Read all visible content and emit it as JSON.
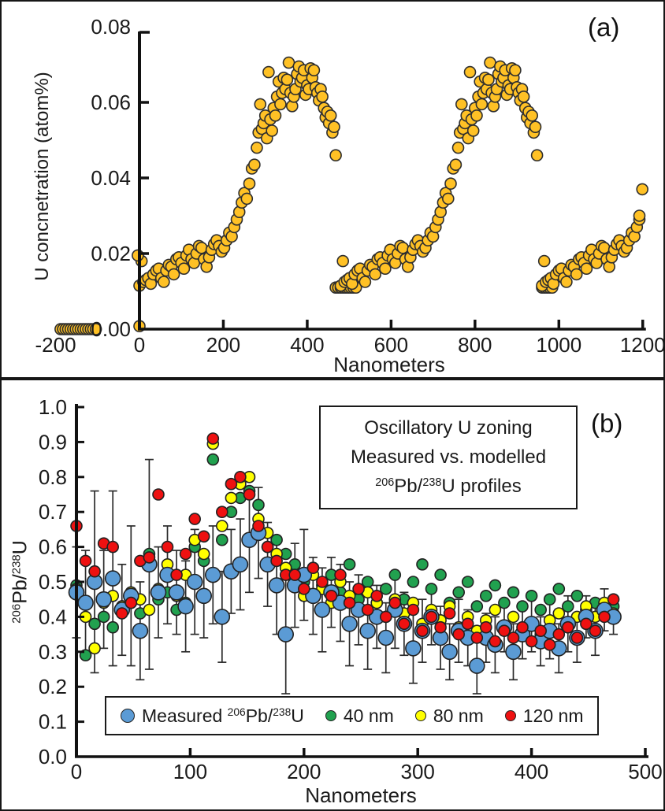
{
  "page": {
    "background": "#ffffff",
    "border_color": "#161616"
  },
  "panel_a": {
    "letter": "(a)",
    "ylabel": "U concnetration (atom%)",
    "xlabel": "Nanometers"
  },
  "panel_b": {
    "letter": "(b)",
    "xlabel": "Nanometers",
    "ylabel_parts": {
      "sup1": "206",
      "mid": "Pb/",
      "sup2": "238",
      "end": "U"
    },
    "title_box": {
      "line1": "Oscillatory U zoning",
      "line2": "Measured vs. modelled",
      "line3_parts": {
        "sup1": "206",
        "mid": "Pb/",
        "sup2": "238",
        "end": "U profiles"
      }
    },
    "legend": {
      "measured": {
        "prefix": "Measured ",
        "sup1": "206",
        "mid": "Pb/",
        "sup2": "238",
        "end": "U"
      },
      "items": [
        {
          "label": "40 nm",
          "color": "#21A14F"
        },
        {
          "label": "80 nm",
          "color": "#FFFF00"
        },
        {
          "label": "120 nm",
          "color": "#EE1111"
        }
      ]
    }
  },
  "chart_data": [
    {
      "id": "panel-a",
      "type": "scatter",
      "title": "Oscillatory U zoning profile",
      "xlabel": "Nanometers",
      "ylabel": "U concnetration (atom%)",
      "xlim": [
        -260,
        1210
      ],
      "ylim": [
        0,
        0.08
      ],
      "xticks": [
        -200,
        0,
        200,
        400,
        600,
        800,
        1000,
        1200
      ],
      "xtick_labels": [
        "-200",
        "0",
        "200",
        "400",
        "600",
        "800",
        "1000",
        "1200"
      ],
      "yticks": [
        0,
        0.02,
        0.04,
        0.06,
        0.08
      ],
      "ytick_labels": [
        "0.00",
        "0.02",
        "0.04",
        "0.06",
        "0.08"
      ],
      "grid": false,
      "marker": {
        "color": "#FFC125",
        "stroke": "#2e2e2e",
        "radius": 7
      },
      "cycles": [
        {
          "offset": 0,
          "max_dx": 470
        },
        {
          "offset": 480,
          "max_dx": 470
        },
        {
          "offset": 960,
          "max_dx": 236
        }
      ],
      "cycle_template": [
        [
          0,
          0.0115
        ],
        [
          5,
          0.018
        ],
        [
          9,
          0.0125
        ],
        [
          15,
          0.013
        ],
        [
          21,
          0.0135
        ],
        [
          27,
          0.012
        ],
        [
          33,
          0.0145
        ],
        [
          40,
          0.0155
        ],
        [
          46,
          0.016
        ],
        [
          52,
          0.0135
        ],
        [
          58,
          0.0125
        ],
        [
          64,
          0.0155
        ],
        [
          70,
          0.017
        ],
        [
          76,
          0.0165
        ],
        [
          82,
          0.0145
        ],
        [
          88,
          0.0185
        ],
        [
          94,
          0.019
        ],
        [
          100,
          0.0175
        ],
        [
          106,
          0.016
        ],
        [
          112,
          0.0195
        ],
        [
          118,
          0.021
        ],
        [
          124,
          0.0185
        ],
        [
          130,
          0.0175
        ],
        [
          136,
          0.02
        ],
        [
          142,
          0.022
        ],
        [
          148,
          0.0215
        ],
        [
          154,
          0.0185
        ],
        [
          160,
          0.0165
        ],
        [
          166,
          0.019
        ],
        [
          172,
          0.021
        ],
        [
          178,
          0.0225
        ],
        [
          184,
          0.0235
        ],
        [
          190,
          0.022
        ],
        [
          196,
          0.0205
        ],
        [
          202,
          0.0215
        ],
        [
          208,
          0.0235
        ],
        [
          214,
          0.0255
        ],
        [
          220,
          0.0245
        ],
        [
          226,
          0.027
        ],
        [
          232,
          0.029
        ],
        [
          238,
          0.031
        ],
        [
          244,
          0.0335
        ],
        [
          250,
          0.036
        ],
        [
          256,
          0.0345
        ],
        [
          262,
          0.0385
        ],
        [
          268,
          0.0425
        ],
        [
          274,
          0.0435
        ],
        [
          280,
          0.048
        ],
        [
          284,
          0.052
        ],
        [
          288,
          0.0595
        ],
        [
          292,
          0.053
        ],
        [
          296,
          0.0545
        ],
        [
          300,
          0.0565
        ],
        [
          304,
          0.0505
        ],
        [
          308,
          0.068
        ],
        [
          312,
          0.0555
        ],
        [
          316,
          0.0525
        ],
        [
          320,
          0.0585
        ],
        [
          324,
          0.0565
        ],
        [
          328,
          0.0615
        ],
        [
          332,
          0.0655
        ],
        [
          336,
          0.0595
        ],
        [
          340,
          0.0625
        ],
        [
          344,
          0.0665
        ],
        [
          348,
          0.0635
        ],
        [
          352,
          0.066
        ],
        [
          356,
          0.0705
        ],
        [
          360,
          0.0625
        ],
        [
          364,
          0.059
        ],
        [
          368,
          0.0615
        ],
        [
          372,
          0.0635
        ],
        [
          376,
          0.0675
        ],
        [
          380,
          0.0695
        ],
        [
          384,
          0.0655
        ],
        [
          388,
          0.0665
        ],
        [
          392,
          0.0685
        ],
        [
          396,
          0.062
        ],
        [
          400,
          0.0645
        ],
        [
          404,
          0.0635
        ],
        [
          408,
          0.069
        ],
        [
          412,
          0.0665
        ],
        [
          416,
          0.0685
        ],
        [
          420,
          0.064
        ],
        [
          424,
          0.0625
        ],
        [
          428,
          0.0605
        ],
        [
          432,
          0.0635
        ],
        [
          436,
          0.0615
        ],
        [
          440,
          0.0585
        ],
        [
          444,
          0.056
        ],
        [
          448,
          0.0575
        ],
        [
          452,
          0.0545
        ],
        [
          456,
          0.0565
        ],
        [
          460,
          0.052
        ],
        [
          464,
          0.0535
        ],
        [
          468,
          0.046
        ]
      ],
      "chains": [
        {
          "y": 0.0,
          "x": [
            -188,
            -182,
            -176,
            -170,
            -164,
            -158,
            -152,
            -146,
            -140,
            -134,
            -128,
            -122,
            -116,
            -110,
            -104
          ]
        },
        {
          "y": 0.011,
          "x": [
            468,
            474,
            480,
            486,
            492,
            498,
            504,
            510,
            516
          ]
        },
        {
          "y": 0.011,
          "x": [
            960,
            966,
            972,
            978,
            984
          ]
        }
      ],
      "extra_points": [
        [
          -4,
          0.0195
        ],
        [
          0,
          0.0008
        ],
        [
          1192,
          0.03
        ],
        [
          1199,
          0.037
        ]
      ]
    },
    {
      "id": "panel-b",
      "type": "scatter",
      "title": "Oscillatory U zoning - Measured vs. modelled 206Pb/238U profiles",
      "xlabel": "Nanometers",
      "ylabel": "²⁰⁶Pb/²³⁸U",
      "xlim": [
        0,
        500
      ],
      "ylim": [
        0,
        1
      ],
      "xticks": [
        0,
        100,
        200,
        300,
        400,
        500
      ],
      "xtick_labels": [
        "0",
        "100",
        "200",
        "300",
        "400",
        "500"
      ],
      "yticks": [
        0,
        0.1,
        0.2,
        0.3,
        0.4,
        0.5,
        0.6,
        0.7,
        0.8,
        0.9,
        1.0
      ],
      "ytick_labels": [
        "0.0",
        "0.1",
        "0.2",
        "0.3",
        "0.4",
        "0.5",
        "0.6",
        "0.7",
        "0.8",
        "0.9",
        "1.0"
      ],
      "grid": false,
      "legend_position": "bottom-left",
      "x_start": 0,
      "x_step": 8,
      "series": [
        {
          "name": "Measured ²⁰⁶Pb/²³⁸U",
          "color": "#5B9BD5",
          "stroke": "#222222",
          "radius": 9.5,
          "values": [
            0.47,
            0.44,
            0.5,
            0.45,
            0.51,
            0.42,
            0.46,
            0.36,
            0.55,
            0.47,
            0.52,
            0.47,
            0.43,
            0.5,
            0.46,
            0.52,
            0.4,
            0.53,
            0.55,
            0.62,
            0.64,
            0.55,
            0.49,
            0.35,
            0.49,
            0.52,
            0.46,
            0.42,
            0.47,
            0.44,
            0.38,
            0.42,
            0.36,
            0.4,
            0.34,
            0.42,
            0.38,
            0.31,
            0.36,
            0.4,
            0.34,
            0.3,
            0.36,
            0.34,
            0.26,
            0.34,
            0.32,
            0.37,
            0.3,
            0.35,
            0.38,
            0.33,
            0.36,
            0.31,
            0.38,
            0.34,
            0.4,
            0.36,
            0.42,
            0.4
          ],
          "errors": [
            0.13,
            0.15,
            0.26,
            0.14,
            0.25,
            0.13,
            0.2,
            0.14,
            0.3,
            0.13,
            0.14,
            0.12,
            0.13,
            0.15,
            0.12,
            0.14,
            0.13,
            0.12,
            0.13,
            0.15,
            0.13,
            0.12,
            0.14,
            0.17,
            0.12,
            0.13,
            0.11,
            0.12,
            0.1,
            0.11,
            0.12,
            0.1,
            0.11,
            0.09,
            0.1,
            0.11,
            0.09,
            0.1,
            0.09,
            0.08,
            0.09,
            0.08,
            0.09,
            0.08,
            0.08,
            0.07,
            0.08,
            0.07,
            0.08,
            0.07,
            0.08,
            0.07,
            0.08,
            0.07,
            0.08,
            0.07,
            0.06,
            0.07,
            0.06,
            0.05
          ]
        },
        {
          "name": "40 nm",
          "color": "#21A14F",
          "stroke": "#222222",
          "radius": 7,
          "values": [
            0.49,
            0.29,
            0.38,
            0.4,
            0.37,
            0.43,
            0.44,
            0.41,
            0.58,
            0.45,
            0.47,
            0.42,
            0.44,
            0.6,
            0.56,
            0.85,
            0.62,
            0.7,
            0.74,
            0.76,
            0.72,
            0.6,
            0.62,
            0.58,
            0.55,
            0.5,
            0.54,
            0.49,
            0.52,
            0.47,
            0.55,
            0.45,
            0.5,
            0.44,
            0.48,
            0.52,
            0.45,
            0.5,
            0.55,
            0.48,
            0.52,
            0.44,
            0.47,
            0.5,
            0.43,
            0.46,
            0.49,
            0.44,
            0.47,
            0.43,
            0.46,
            0.42,
            0.45,
            0.48,
            0.43,
            0.46,
            0.42,
            0.44,
            0.41,
            0.43
          ]
        },
        {
          "name": "80 nm",
          "color": "#FFFF00",
          "stroke": "#222222",
          "radius": 7,
          "values": [
            0.48,
            0.4,
            0.31,
            0.44,
            0.46,
            0.43,
            0.47,
            0.45,
            0.42,
            0.48,
            0.55,
            0.46,
            0.52,
            0.62,
            0.58,
            0.895,
            0.66,
            0.74,
            0.78,
            0.8,
            0.68,
            0.64,
            0.58,
            0.54,
            0.5,
            0.46,
            0.52,
            0.48,
            0.44,
            0.5,
            0.46,
            0.42,
            0.47,
            0.44,
            0.4,
            0.45,
            0.41,
            0.44,
            0.38,
            0.42,
            0.39,
            0.43,
            0.37,
            0.4,
            0.36,
            0.39,
            0.42,
            0.37,
            0.4,
            0.36,
            0.38,
            0.35,
            0.39,
            0.41,
            0.37,
            0.4,
            0.43,
            0.4,
            0.44,
            0.41
          ]
        },
        {
          "name": "120 nm",
          "color": "#EE1111",
          "stroke": "#222222",
          "radius": 7,
          "values": [
            0.66,
            0.56,
            0.53,
            0.61,
            0.6,
            0.41,
            0.44,
            0.56,
            0.57,
            0.75,
            0.6,
            0.52,
            0.58,
            0.68,
            0.63,
            0.91,
            0.7,
            0.78,
            0.8,
            0.75,
            0.66,
            0.6,
            0.56,
            0.52,
            0.52,
            0.48,
            0.54,
            0.5,
            0.46,
            0.52,
            0.44,
            0.48,
            0.42,
            0.46,
            0.4,
            0.44,
            0.38,
            0.42,
            0.36,
            0.4,
            0.37,
            0.41,
            0.35,
            0.38,
            0.34,
            0.37,
            0.33,
            0.36,
            0.34,
            0.37,
            0.33,
            0.36,
            0.32,
            0.35,
            0.37,
            0.34,
            0.38,
            0.36,
            0.4,
            0.45
          ]
        }
      ]
    }
  ]
}
